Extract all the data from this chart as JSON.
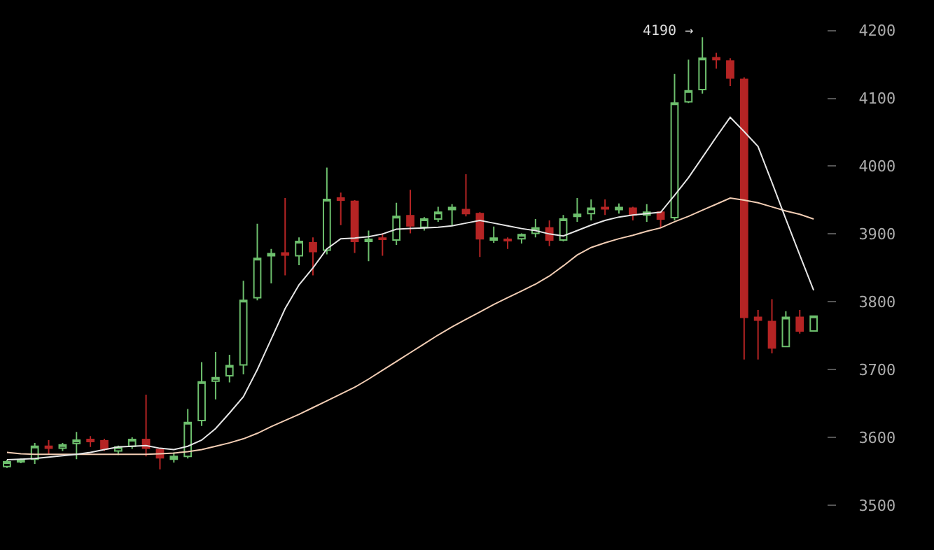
{
  "chart_data": {
    "type": "candlestick",
    "categories": [
      null,
      null,
      null,
      null,
      null,
      null,
      null,
      null,
      null,
      null,
      null,
      null,
      null,
      null,
      null,
      null,
      null,
      null,
      null,
      null,
      null,
      null,
      null,
      null,
      null,
      null,
      null,
      null,
      null,
      null,
      null,
      null,
      null,
      null,
      null,
      null,
      null,
      null,
      null,
      null,
      null,
      null,
      null,
      null,
      null,
      null,
      null,
      null,
      null,
      null,
      null,
      null,
      null,
      null,
      null,
      null,
      null,
      null,
      null
    ],
    "ohlc": [
      [
        3557,
        3567,
        3555,
        3564
      ],
      [
        3564,
        3569,
        3562,
        3566
      ],
      [
        3568,
        3592,
        3561,
        3587
      ],
      [
        3587,
        3596,
        3575,
        3584
      ],
      [
        3584,
        3592,
        3580,
        3589
      ],
      [
        3591,
        3608,
        3568,
        3596
      ],
      [
        3597,
        3602,
        3586,
        3594
      ],
      [
        3595,
        3598,
        3580,
        3583
      ],
      [
        3580,
        3588,
        3574,
        3586
      ],
      [
        3587,
        3600,
        3583,
        3597
      ],
      [
        3597,
        3663,
        3572,
        3584
      ],
      [
        3582,
        3584,
        3553,
        3570
      ],
      [
        3568,
        3578,
        3563,
        3572
      ],
      [
        3572,
        3642,
        3569,
        3622
      ],
      [
        3625,
        3711,
        3617,
        3682
      ],
      [
        3683,
        3726,
        3656,
        3688
      ],
      [
        3691,
        3722,
        3681,
        3706
      ],
      [
        3707,
        3831,
        3693,
        3802
      ],
      [
        3806,
        3915,
        3802,
        3864
      ],
      [
        3868,
        3878,
        3827,
        3871
      ],
      [
        3872,
        3953,
        3839,
        3869
      ],
      [
        3868,
        3895,
        3854,
        3889
      ],
      [
        3887,
        3895,
        3839,
        3874
      ],
      [
        3876,
        3998,
        3870,
        3951
      ],
      [
        3953,
        3961,
        3913,
        3950
      ],
      [
        3948,
        3950,
        3872,
        3889
      ],
      [
        3889,
        3905,
        3860,
        3892
      ],
      [
        3894,
        3901,
        3868,
        3892
      ],
      [
        3891,
        3946,
        3884,
        3926
      ],
      [
        3927,
        3965,
        3901,
        3912
      ],
      [
        3910,
        3925,
        3905,
        3922
      ],
      [
        3922,
        3940,
        3918,
        3932
      ],
      [
        3936,
        3944,
        3912,
        3939
      ],
      [
        3936,
        3988,
        3926,
        3930
      ],
      [
        3930,
        3932,
        3866,
        3893
      ],
      [
        3891,
        3911,
        3887,
        3894
      ],
      [
        3892,
        3895,
        3878,
        3890
      ],
      [
        3893,
        3901,
        3886,
        3899
      ],
      [
        3901,
        3922,
        3895,
        3909
      ],
      [
        3909,
        3920,
        3882,
        3891
      ],
      [
        3891,
        3928,
        3889,
        3922
      ],
      [
        3926,
        3953,
        3918,
        3929
      ],
      [
        3930,
        3951,
        3920,
        3938
      ],
      [
        3939,
        3951,
        3928,
        3937
      ],
      [
        3936,
        3945,
        3930,
        3939
      ],
      [
        3938,
        3940,
        3920,
        3928
      ],
      [
        3928,
        3944,
        3918,
        3932
      ],
      [
        3932,
        3934,
        3909,
        3922
      ],
      [
        3924,
        4136,
        3920,
        4093
      ],
      [
        4095,
        4157,
        4093,
        4111
      ],
      [
        4113,
        4190,
        4107,
        4159
      ],
      [
        4160,
        4167,
        4144,
        4157
      ],
      [
        4155,
        4159,
        4118,
        4130
      ],
      [
        4128,
        4131,
        3715,
        3777
      ],
      [
        3777,
        3788,
        3715,
        3773
      ],
      [
        3771,
        3804,
        3724,
        3732
      ],
      [
        3734,
        3786,
        3734,
        3777
      ],
      [
        3777,
        3788,
        3753,
        3757
      ],
      [
        3757,
        3779,
        3757,
        3779
      ]
    ],
    "colors": [
      "#6dbf6d",
      "#6dbf6d",
      "#6dbf6d",
      "#b52424",
      "#6dbf6d",
      "#6dbf6d",
      "#b52424",
      "#b52424",
      "#6dbf6d",
      "#6dbf6d",
      "#b52424",
      "#b52424",
      "#6dbf6d",
      "#6dbf6d",
      "#6dbf6d",
      "#6dbf6d",
      "#6dbf6d",
      "#6dbf6d",
      "#6dbf6d",
      "#6dbf6d",
      "#b52424",
      "#6dbf6d",
      "#b52424",
      "#6dbf6d",
      "#b52424",
      "#b52424",
      "#6dbf6d",
      "#b52424",
      "#6dbf6d",
      "#b52424",
      "#6dbf6d",
      "#6dbf6d",
      "#6dbf6d",
      "#b52424",
      "#b52424",
      "#6dbf6d",
      "#b52424",
      "#6dbf6d",
      "#6dbf6d",
      "#b52424",
      "#6dbf6d",
      "#6dbf6d",
      "#6dbf6d",
      "#b52424",
      "#6dbf6d",
      "#b52424",
      "#6dbf6d",
      "#b52424",
      "#6dbf6d",
      "#6dbf6d",
      "#6dbf6d",
      "#b52424",
      "#b52424",
      "#b52424",
      "#b52424",
      "#b52424",
      "#6dbf6d",
      "#b52424",
      "#6dbf6d"
    ],
    "series": [
      {
        "type": "line",
        "color": "#f2cdb4",
        "values": [
          3578,
          3576,
          3575,
          3575,
          3575,
          3575,
          3575,
          3575,
          3575,
          3575,
          3575,
          3576,
          3577,
          3579,
          3582,
          3587,
          3592,
          3598,
          3606,
          3616,
          3625,
          3634,
          3644,
          3654,
          3664,
          3674,
          3686,
          3699,
          3712,
          3725,
          3738,
          3751,
          3763,
          3774,
          3785,
          3796,
          3806,
          3816,
          3826,
          3838,
          3853,
          3869,
          3880,
          3887,
          3893,
          3898,
          3904,
          3909,
          3918,
          3926,
          3935,
          3944,
          3953,
          3950,
          3946,
          3940,
          3934,
          3929,
          3922
        ]
      },
      {
        "type": "line",
        "color": "#e6e6e6",
        "values": [
          3567,
          3568,
          3569,
          3571,
          3573,
          3575,
          3578,
          3582,
          3586,
          3587,
          3588,
          3584,
          3582,
          3587,
          3596,
          3613,
          3636,
          3660,
          3700,
          3745,
          3790,
          3825,
          3850,
          3878,
          3893,
          3894,
          3896,
          3900,
          3907,
          3908,
          3909,
          3910,
          3912,
          3916,
          3920,
          3916,
          3912,
          3908,
          3905,
          3900,
          3897,
          3905,
          3913,
          3920,
          3925,
          3928,
          3930,
          3932,
          3957,
          3983,
          4013,
          4043,
          4072,
          4051,
          4029,
          3976,
          3922,
          3869,
          3817
        ]
      }
    ],
    "ylim": [
      3434,
      4245
    ],
    "yticks": [
      3500,
      3600,
      3700,
      3800,
      3900,
      4000,
      4100,
      4200
    ],
    "tick_labels": "y",
    "annotations": [
      "4190 →"
    ]
  }
}
